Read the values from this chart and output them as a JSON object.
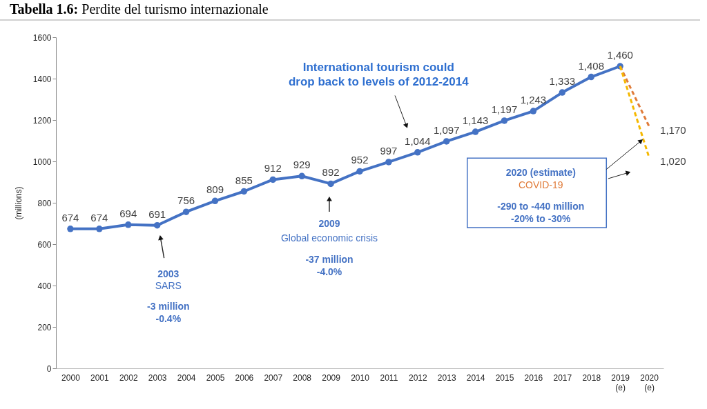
{
  "chart_data": {
    "type": "line",
    "title": "Tabella 1.6: Perdite del turismo internazionale",
    "ylabel": "(millions)",
    "categories": [
      "2000",
      "2001",
      "2002",
      "2003",
      "2004",
      "2005",
      "2006",
      "2007",
      "2008",
      "2009",
      "2010",
      "2011",
      "2012",
      "2013",
      "2014",
      "2015",
      "2016",
      "2017",
      "2018",
      "2019 (e)",
      "2020 (e)"
    ],
    "series": [
      {
        "color": "#4472c4",
        "marker": "circle",
        "line_style": "solid",
        "values": [
          674,
          674,
          694,
          691,
          756,
          809,
          855,
          912,
          929,
          892,
          952,
          997,
          1044,
          1097,
          1143,
          1197,
          1243,
          1333,
          1408,
          1460,
          null
        ],
        "value_labels": [
          "674",
          "674",
          "694",
          "691",
          "756",
          "809",
          "855",
          "912",
          "929",
          "892",
          "952",
          "997",
          "1,044",
          "1,097",
          "1,143",
          "1,197",
          "1,243",
          "1,333",
          "1,408",
          "1,460",
          null
        ]
      },
      {
        "color": "#e07b39",
        "marker": "none",
        "line_style": "dashed",
        "values": [
          null,
          null,
          null,
          null,
          null,
          null,
          null,
          null,
          null,
          null,
          null,
          null,
          null,
          null,
          null,
          null,
          null,
          null,
          null,
          1460,
          1170
        ],
        "value_labels": [
          null,
          null,
          null,
          null,
          null,
          null,
          null,
          null,
          null,
          null,
          null,
          null,
          null,
          null,
          null,
          null,
          null,
          null,
          null,
          null,
          "1,170"
        ]
      },
      {
        "color": "#f5b800",
        "marker": "none",
        "line_style": "dashed",
        "values": [
          null,
          null,
          null,
          null,
          null,
          null,
          null,
          null,
          null,
          null,
          null,
          null,
          null,
          null,
          null,
          null,
          null,
          null,
          null,
          1460,
          1020
        ],
        "value_labels": [
          null,
          null,
          null,
          null,
          null,
          null,
          null,
          null,
          null,
          null,
          null,
          null,
          null,
          null,
          null,
          null,
          null,
          null,
          null,
          null,
          "1,020"
        ]
      }
    ],
    "ylim": [
      0,
      1600
    ],
    "yticks": [
      0,
      200,
      400,
      600,
      800,
      1000,
      1200,
      1400,
      1600
    ],
    "grid": false,
    "annotations": [
      "International tourism could\ndrop back to levels of 2012-2014",
      "2003",
      "SARS",
      "-3 million\n-0.4%",
      "2009",
      "Global economic crisis",
      "-37 million\n-4.0%",
      "2020 (estimate)",
      "COVID-19",
      "-290 to -440 million\n-20% to -30%"
    ]
  }
}
